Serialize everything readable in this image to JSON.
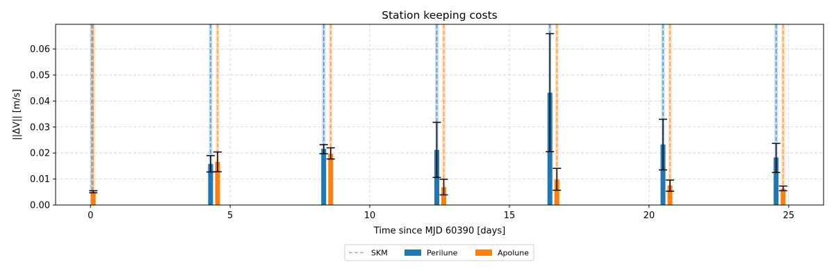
{
  "chart_data": {
    "type": "bar",
    "title": "Station keeping costs",
    "xlabel": "Time since MJD 60390 [days]",
    "ylabel": "||ΔV|| [m/s]",
    "xlim": [
      -1.25,
      26.25
    ],
    "ylim": [
      0,
      0.0695
    ],
    "xticks": [
      0,
      5,
      10,
      15,
      20,
      25
    ],
    "yticks": [
      0.0,
      0.01,
      0.02,
      0.03,
      0.04,
      0.05,
      0.06
    ],
    "ytick_labels": [
      "0.00",
      "0.01",
      "0.02",
      "0.03",
      "0.04",
      "0.05",
      "0.06"
    ],
    "grid": true,
    "legend": {
      "placement": "bottom-center",
      "entries": [
        {
          "label": "SKM",
          "style": "dashed-line",
          "color": "#aaaaaa"
        },
        {
          "label": "Perilune",
          "style": "bar",
          "color": "#1f77b4"
        },
        {
          "label": "Apolune",
          "style": "bar",
          "color": "#ff7f0e"
        }
      ]
    },
    "skm_times": {
      "perilune": [
        0.05,
        4.3,
        8.35,
        12.4,
        16.45,
        20.5,
        24.55
      ],
      "apolune": [
        0.1,
        4.55,
        8.6,
        12.65,
        16.7,
        20.75,
        24.8
      ]
    },
    "series": [
      {
        "name": "Perilune",
        "color": "#1f77b4",
        "x": [
          4.3,
          8.35,
          12.4,
          16.45,
          20.5,
          24.55
        ],
        "values": [
          0.0158,
          0.0216,
          0.0212,
          0.0432,
          0.0233,
          0.0183
        ],
        "err_low": [
          0.0127,
          0.0197,
          0.0106,
          0.0205,
          0.0135,
          0.0125
        ],
        "err_high": [
          0.019,
          0.0232,
          0.0318,
          0.0659,
          0.033,
          0.0237
        ]
      },
      {
        "name": "Apolune",
        "color": "#ff7f0e",
        "x": [
          0.1,
          4.55,
          8.6,
          12.65,
          16.7,
          20.75,
          24.8
        ],
        "values": [
          0.0051,
          0.0166,
          0.0197,
          0.0069,
          0.0098,
          0.0075,
          0.0063
        ],
        "err_low": [
          0.0047,
          0.0128,
          0.0177,
          0.0039,
          0.0057,
          0.0053,
          0.0055
        ],
        "err_high": [
          0.0055,
          0.0204,
          0.022,
          0.0099,
          0.0141,
          0.0096,
          0.0073
        ]
      }
    ]
  }
}
